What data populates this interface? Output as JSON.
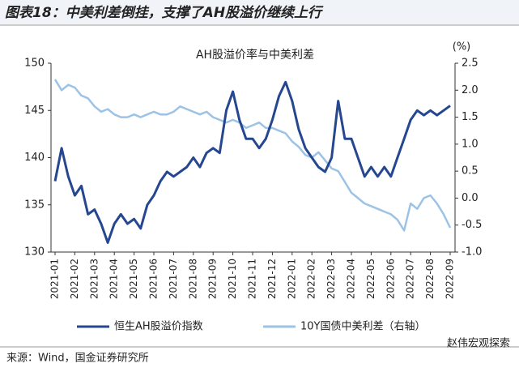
{
  "chart_data": {
    "type": "line",
    "title": "图表18：中美利差倒挂，支撑了AH股溢价继续上行",
    "subtitle": "AH股溢价率与中美利差",
    "y2_label": "(%)",
    "source": "来源：Wind，国金证券研究所",
    "watermark": "赵伟宏观探索",
    "categories": [
      "2021-01",
      null,
      null,
      "2021-02",
      null,
      null,
      "2021-03",
      null,
      null,
      "2021-04",
      null,
      null,
      "2021-05",
      null,
      null,
      "2021-06",
      null,
      null,
      "2021-07",
      null,
      null,
      "2021-08",
      null,
      null,
      "2021-09",
      null,
      null,
      "2021-10",
      null,
      null,
      "2021-11",
      null,
      null,
      "2021-12",
      null,
      null,
      "2022-01",
      null,
      null,
      "2022-02",
      null,
      null,
      "2022-03",
      null,
      null,
      "2022-04",
      null,
      null,
      "2022-05",
      null,
      null,
      "2022-06",
      null,
      null,
      "2022-07",
      null,
      null,
      "2022-08",
      null,
      null,
      "2022-09"
    ],
    "series": [
      {
        "name": "恒生AH股溢价指数",
        "color": "#24478f",
        "axis": "y",
        "values": [
          137.5,
          141,
          138,
          136,
          137,
          134,
          134.5,
          133,
          131,
          133,
          134,
          133,
          133.5,
          132.5,
          135,
          136,
          137.5,
          138.5,
          138,
          138.5,
          139,
          140,
          139,
          140.5,
          141,
          140.5,
          145,
          147,
          144,
          142,
          142,
          141,
          142,
          144,
          146.5,
          148,
          146,
          143,
          141,
          140,
          139,
          138.5,
          140,
          146,
          142,
          142,
          140,
          138,
          139,
          138,
          139,
          138,
          140,
          142,
          144,
          145,
          144.5,
          145,
          144.5,
          145,
          145.5
        ]
      },
      {
        "name": "10Y国债中美利差（右轴）",
        "color": "#9cc3e6",
        "axis": "y2",
        "values": [
          2.2,
          2.0,
          2.1,
          2.05,
          1.9,
          1.85,
          1.7,
          1.6,
          1.65,
          1.55,
          1.5,
          1.5,
          1.55,
          1.5,
          1.55,
          1.6,
          1.55,
          1.55,
          1.6,
          1.7,
          1.65,
          1.6,
          1.55,
          1.6,
          1.5,
          1.45,
          1.4,
          1.45,
          1.4,
          1.3,
          1.35,
          1.4,
          1.3,
          1.3,
          1.25,
          1.2,
          1.05,
          0.95,
          0.8,
          0.75,
          0.85,
          0.7,
          0.55,
          0.5,
          0.3,
          0.1,
          0.0,
          -0.1,
          -0.15,
          -0.2,
          -0.25,
          -0.3,
          -0.4,
          -0.6,
          -0.1,
          -0.2,
          0.0,
          0.05,
          -0.1,
          -0.3,
          -0.55
        ]
      }
    ],
    "ylim": [
      130,
      150
    ],
    "yticks": [
      130,
      135,
      140,
      145,
      150
    ],
    "y2lim": [
      -1,
      2.5
    ],
    "y2ticks": [
      {
        "value": -1,
        "label": "-1.0"
      },
      -0.5,
      {
        "value": 0,
        "label": "0.0"
      },
      0.5,
      {
        "value": 1,
        "label": "1.0"
      },
      1.5,
      {
        "value": 2,
        "label": "2.0"
      },
      2.5
    ],
    "grid": false
  }
}
